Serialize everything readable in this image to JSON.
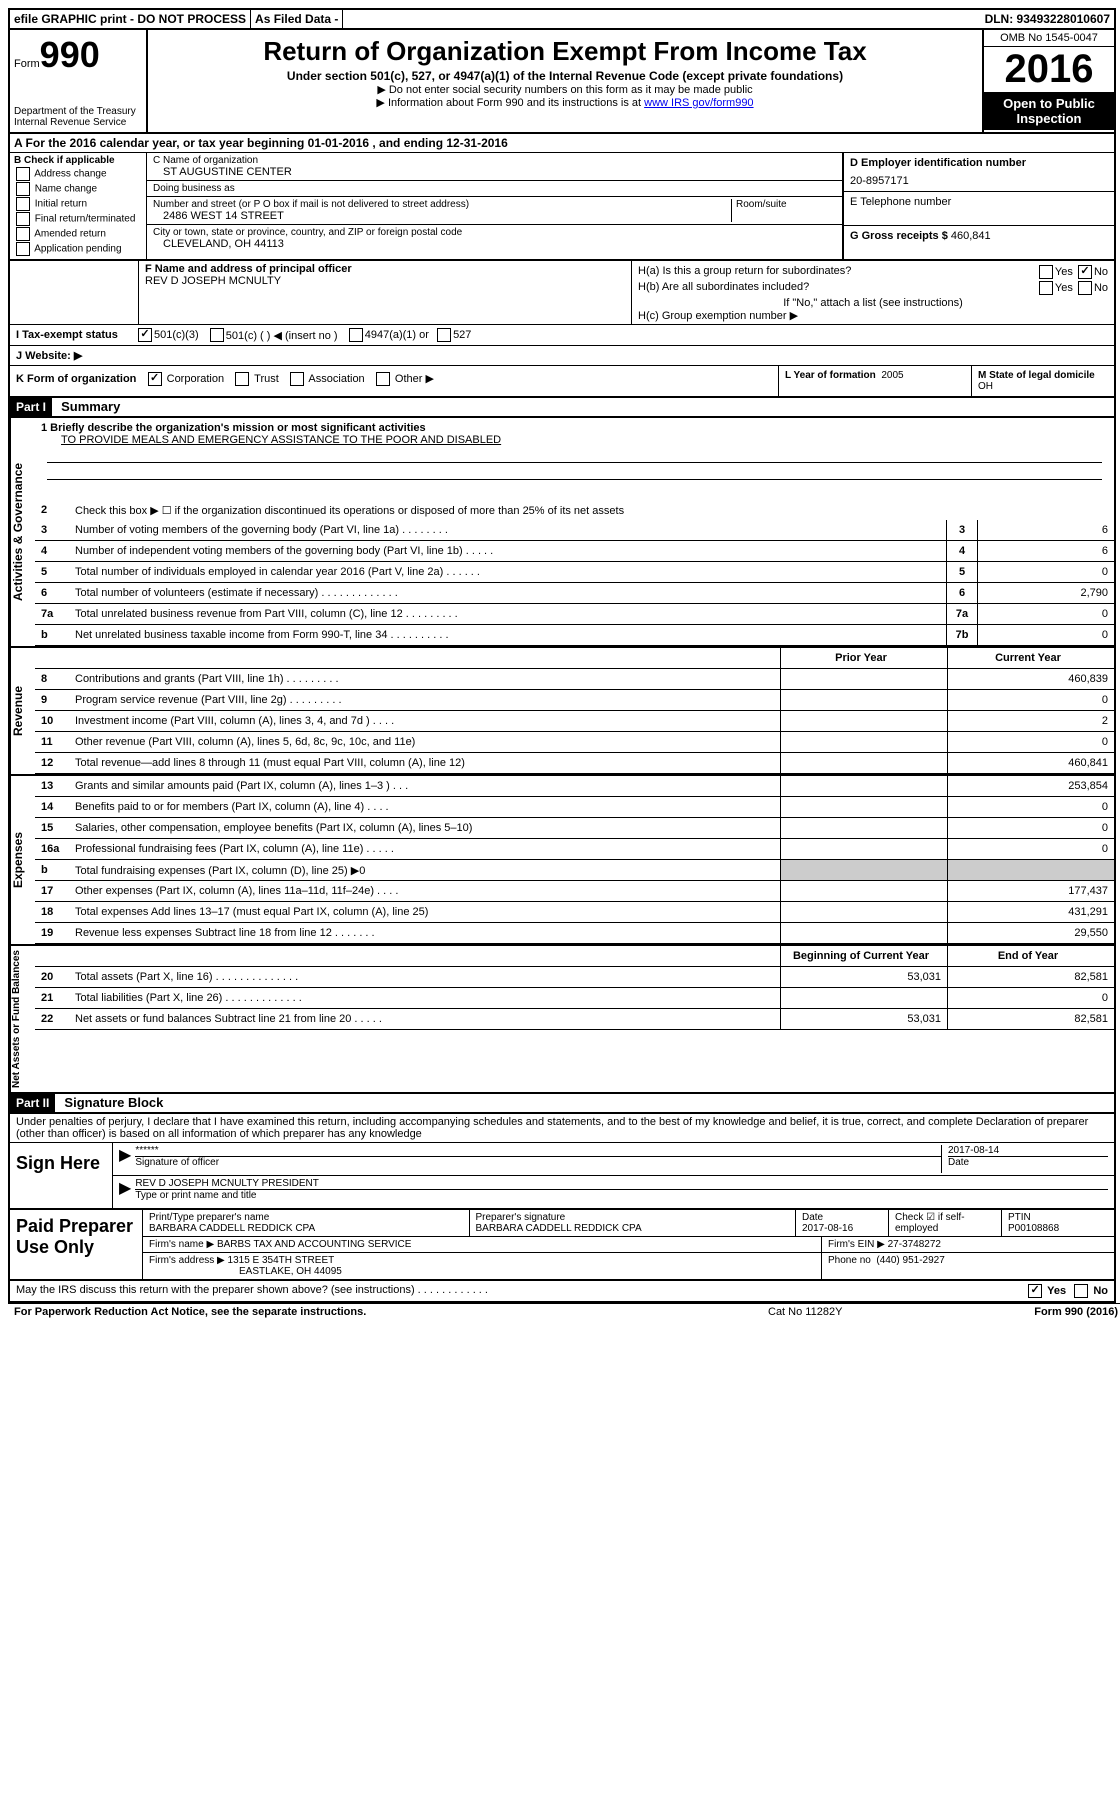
{
  "topbar": {
    "efile": "efile GRAPHIC print - DO NOT PROCESS",
    "asfiled": "As Filed Data -",
    "dln": "DLN: 93493228010607"
  },
  "header": {
    "form_prefix": "Form",
    "form_number": "990",
    "dept": "Department of the Treasury",
    "irs": "Internal Revenue Service",
    "title": "Return of Organization Exempt From Income Tax",
    "subtitle": "Under section 501(c), 527, or 4947(a)(1) of the Internal Revenue Code (except private foundations)",
    "note1": "▶ Do not enter social security numbers on this form as it may be made public",
    "note2_pre": "▶ Information about Form 990 and its instructions is at ",
    "note2_link": "www IRS gov/form990",
    "omb": "OMB No 1545-0047",
    "year": "2016",
    "open": "Open to Public Inspection"
  },
  "rowA": "A  For the 2016 calendar year, or tax year beginning 01-01-2016   , and ending 12-31-2016",
  "sectionB": {
    "title": "B Check if applicable",
    "items": [
      "Address change",
      "Name change",
      "Initial return",
      "Final return/terminated",
      "Amended return",
      "Application pending"
    ]
  },
  "sectionC": {
    "name_label": "C Name of organization",
    "name": "ST AUGUSTINE CENTER",
    "dba_label": "Doing business as",
    "dba": "",
    "street_label": "Number and street (or P O  box if mail is not delivered to street address)",
    "room_label": "Room/suite",
    "street": "2486 WEST 14 STREET",
    "city_label": "City or town, state or province, country, and ZIP or foreign postal code",
    "city": "CLEVELAND, OH  44113"
  },
  "sectionD": {
    "label": "D Employer identification number",
    "value": "20-8957171"
  },
  "sectionE": {
    "label": "E Telephone number",
    "value": ""
  },
  "sectionG": {
    "label": "G Gross receipts $",
    "value": "460,841"
  },
  "sectionF": {
    "label": "F  Name and address of principal officer",
    "value": "REV D JOSEPH MCNULTY"
  },
  "sectionH": {
    "a": "H(a)  Is this a group return for subordinates?",
    "a_yes": "Yes",
    "a_no": "No",
    "b": "H(b)  Are all subordinates included?",
    "b_yes": "Yes",
    "b_no": "No",
    "b_note": "If \"No,\" attach a list  (see instructions)",
    "c": "H(c)  Group exemption number ▶"
  },
  "rowI": {
    "label": "I  Tax-exempt status",
    "opt1": "501(c)(3)",
    "opt2": "501(c) (   ) ◀ (insert no )",
    "opt3": "4947(a)(1) or",
    "opt4": "527"
  },
  "rowJ": {
    "label": "J  Website: ▶"
  },
  "rowK": {
    "label": "K Form of organization",
    "opts": [
      "Corporation",
      "Trust",
      "Association",
      "Other ▶"
    ]
  },
  "rowL": {
    "label": "L Year of formation",
    "value": "2005"
  },
  "rowM": {
    "label": "M State of legal domicile",
    "value": "OH"
  },
  "part1": {
    "header": "Part I",
    "title": "Summary"
  },
  "summary": {
    "line1_label": "1 Briefly describe the organization's mission or most significant activities",
    "line1_text": "TO PROVIDE MEALS AND EMERGENCY ASSISTANCE TO THE POOR AND DISABLED",
    "line2": "Check this box ▶ ☐  if the organization discontinued its operations or disposed of more than 25% of its net assets",
    "governance_label": "Activities & Governance",
    "revenue_label": "Revenue",
    "expenses_label": "Expenses",
    "netassets_label": "Net Assets or Fund Balances",
    "prior_header": "Prior Year",
    "current_header": "Current Year",
    "begin_header": "Beginning of Current Year",
    "end_header": "End of Year",
    "lines_gov": [
      {
        "n": "3",
        "d": "Number of voting members of the governing body (Part VI, line 1a)   .    .    .    .    .    .    .    .",
        "box": "3",
        "v": "6"
      },
      {
        "n": "4",
        "d": "Number of independent voting members of the governing body (Part VI, line 1b)    .    .    .    .    .",
        "box": "4",
        "v": "6"
      },
      {
        "n": "5",
        "d": "Total number of individuals employed in calendar year 2016 (Part V, line 2a)    .    .    .    .    .    .",
        "box": "5",
        "v": "0"
      },
      {
        "n": "6",
        "d": "Total number of volunteers (estimate if necessary)    .    .    .    .    .    .    .    .    .    .    .    .    .",
        "box": "6",
        "v": "2,790"
      },
      {
        "n": "7a",
        "d": "Total unrelated business revenue from Part VIII, column (C), line 12   .    .    .    .    .    .    .    .    .",
        "box": "7a",
        "v": "0"
      },
      {
        "n": "b",
        "d": "Net unrelated business taxable income from Form 990-T, line 34   .    .    .    .    .    .    .    .    .    .",
        "box": "7b",
        "v": "0"
      }
    ],
    "lines_rev": [
      {
        "n": "8",
        "d": "Contributions and grants (Part VIII, line 1h)    .    .    .    .    .    .    .    .    .",
        "p": "",
        "c": "460,839"
      },
      {
        "n": "9",
        "d": "Program service revenue (Part VIII, line 2g)   .    .    .    .    .    .    .    .    .",
        "p": "",
        "c": "0"
      },
      {
        "n": "10",
        "d": "Investment income (Part VIII, column (A), lines 3, 4, and 7d )   .    .    .    .",
        "p": "",
        "c": "2"
      },
      {
        "n": "11",
        "d": "Other revenue (Part VIII, column (A), lines 5, 6d, 8c, 9c, 10c, and 11e)",
        "p": "",
        "c": "0"
      },
      {
        "n": "12",
        "d": "Total revenue—add lines 8 through 11 (must equal Part VIII, column (A), line 12)",
        "p": "",
        "c": "460,841"
      }
    ],
    "lines_exp": [
      {
        "n": "13",
        "d": "Grants and similar amounts paid (Part IX, column (A), lines 1–3 )   .    .    .",
        "p": "",
        "c": "253,854"
      },
      {
        "n": "14",
        "d": "Benefits paid to or for members (Part IX, column (A), line 4)   .    .    .    .",
        "p": "",
        "c": "0"
      },
      {
        "n": "15",
        "d": "Salaries, other compensation, employee benefits (Part IX, column (A), lines 5–10)",
        "p": "",
        "c": "0"
      },
      {
        "n": "16a",
        "d": "Professional fundraising fees (Part IX, column (A), line 11e)   .    .    .    .    .",
        "p": "",
        "c": "0"
      },
      {
        "n": "b",
        "d": "Total fundraising expenses (Part IX, column (D), line 25) ▶0",
        "p": "shaded",
        "c": "shaded"
      },
      {
        "n": "17",
        "d": "Other expenses (Part IX, column (A), lines 11a–11d, 11f–24e)   .    .    .    .",
        "p": "",
        "c": "177,437"
      },
      {
        "n": "18",
        "d": "Total expenses  Add lines 13–17 (must equal Part IX, column (A), line 25)",
        "p": "",
        "c": "431,291"
      },
      {
        "n": "19",
        "d": "Revenue less expenses  Subtract line 18 from line 12   .    .    .    .    .    .    .",
        "p": "",
        "c": "29,550"
      }
    ],
    "lines_net": [
      {
        "n": "20",
        "d": "Total assets (Part X, line 16)   .    .    .    .    .    .    .    .    .    .    .    .    .    .",
        "p": "53,031",
        "c": "82,581"
      },
      {
        "n": "21",
        "d": "Total liabilities (Part X, line 26)   .    .    .    .    .    .    .    .    .    .    .    .    .",
        "p": "",
        "c": "0"
      },
      {
        "n": "22",
        "d": "Net assets or fund balances  Subtract line 21 from line 20   .    .    .    .    .",
        "p": "53,031",
        "c": "82,581"
      }
    ]
  },
  "part2": {
    "header": "Part II",
    "title": "Signature Block",
    "declare": "Under penalties of perjury, I declare that I have examined this return, including accompanying schedules and statements, and to the best of my knowledge and belief, it is true, correct, and complete  Declaration of preparer (other than officer) is based on all information of which preparer has any knowledge"
  },
  "sign": {
    "label": "Sign Here",
    "stars": "******",
    "sig_label": "Signature of officer",
    "date": "2017-08-14",
    "date_label": "Date",
    "name": "REV D JOSEPH MCNULTY  PRESIDENT",
    "name_label": "Type or print name and title"
  },
  "prep": {
    "label": "Paid Preparer Use Only",
    "name_label": "Print/Type preparer's name",
    "name": "BARBARA CADDELL REDDICK CPA",
    "sig_label": "Preparer's signature",
    "sig": "BARBARA CADDELL REDDICK CPA",
    "date_label": "Date",
    "date": "2017-08-16",
    "check_label": "Check ☑ if self-employed",
    "ptin_label": "PTIN",
    "ptin": "P00108868",
    "firm_name_label": "Firm's name    ▶",
    "firm_name": "BARBS TAX AND ACCOUNTING SERVICE",
    "firm_ein_label": "Firm's EIN ▶",
    "firm_ein": "27-3748272",
    "firm_addr_label": "Firm's address ▶",
    "firm_addr": "1315 E 354TH STREET",
    "firm_city": "EASTLAKE, OH  44095",
    "phone_label": "Phone no",
    "phone": "(440) 951-2927"
  },
  "footer": {
    "discuss": "May the IRS discuss this return with the preparer shown above? (see instructions)   .    .    .    .    .    .    .    .    .    .    .    .",
    "yes": "Yes",
    "no": "No",
    "paperwork": "For Paperwork Reduction Act Notice, see the separate instructions.",
    "cat": "Cat  No  11282Y",
    "form": "Form 990 (2016)"
  }
}
